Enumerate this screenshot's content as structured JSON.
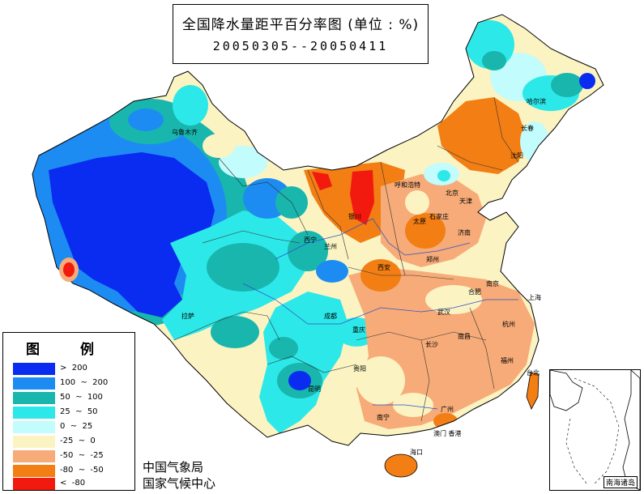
{
  "title": {
    "main": "全国降水量距平百分率图 (单位 : %)",
    "period": "20050305--20050411"
  },
  "legend": {
    "title": "图 例",
    "items": [
      {
        "label": ">  200",
        "color": "#0a2bf0"
      },
      {
        "label": "100  ~  200",
        "color": "#1c8cf2"
      },
      {
        "label": "50  ~  100",
        "color": "#19b6ae"
      },
      {
        "label": "25  ~  50",
        "color": "#2de8e8"
      },
      {
        "label": "0  ~  25",
        "color": "#c2fcfc"
      },
      {
        "label": "-25  ~  0",
        "color": "#fbf3c2"
      },
      {
        "label": "-50  ~  -25",
        "color": "#f6ab78"
      },
      {
        "label": "-80  ~  -50",
        "color": "#f27e14"
      },
      {
        "label": "<  -80",
        "color": "#f21a0e"
      }
    ]
  },
  "agency": {
    "line1": "中国气象局",
    "line2": "国家气候中心"
  },
  "inset": {
    "label": "南海诸岛"
  },
  "cities": [
    {
      "name": "乌鲁木齐",
      "icon": "city-dot"
    },
    {
      "name": "哈尔滨",
      "icon": "city-dot"
    },
    {
      "name": "长春",
      "icon": "city-dot"
    },
    {
      "name": "沈阳",
      "icon": "city-dot"
    },
    {
      "name": "呼和浩特",
      "icon": "city-dot"
    },
    {
      "name": "北京",
      "icon": "city-dot"
    },
    {
      "name": "天津",
      "icon": "city-dot"
    },
    {
      "name": "银川",
      "icon": "city-dot"
    },
    {
      "name": "太原",
      "icon": "city-dot"
    },
    {
      "name": "石家庄",
      "icon": "city-dot"
    },
    {
      "name": "济南",
      "icon": "city-dot"
    },
    {
      "name": "西宁",
      "icon": "city-dot"
    },
    {
      "name": "兰州",
      "icon": "city-dot"
    },
    {
      "name": "西安",
      "icon": "city-dot"
    },
    {
      "name": "郑州",
      "icon": "city-dot"
    },
    {
      "name": "合肥",
      "icon": "city-dot"
    },
    {
      "name": "南京",
      "icon": "city-dot"
    },
    {
      "name": "上海",
      "icon": "city-dot"
    },
    {
      "name": "拉萨",
      "icon": "city-dot"
    },
    {
      "name": "成都",
      "icon": "city-dot"
    },
    {
      "name": "重庆",
      "icon": "city-dot"
    },
    {
      "name": "武汉",
      "icon": "city-dot"
    },
    {
      "name": "杭州",
      "icon": "city-dot"
    },
    {
      "name": "长沙",
      "icon": "city-dot"
    },
    {
      "name": "南昌",
      "icon": "city-dot"
    },
    {
      "name": "福州",
      "icon": "city-dot"
    },
    {
      "name": "台北",
      "icon": "city-dot"
    },
    {
      "name": "贵阳",
      "icon": "city-dot"
    },
    {
      "name": "昆明",
      "icon": "city-dot"
    },
    {
      "name": "南宁",
      "icon": "city-dot"
    },
    {
      "name": "广州",
      "icon": "city-dot"
    },
    {
      "name": "澳门 香港",
      "icon": "city-dot"
    },
    {
      "name": "海口",
      "icon": "city-dot"
    }
  ]
}
